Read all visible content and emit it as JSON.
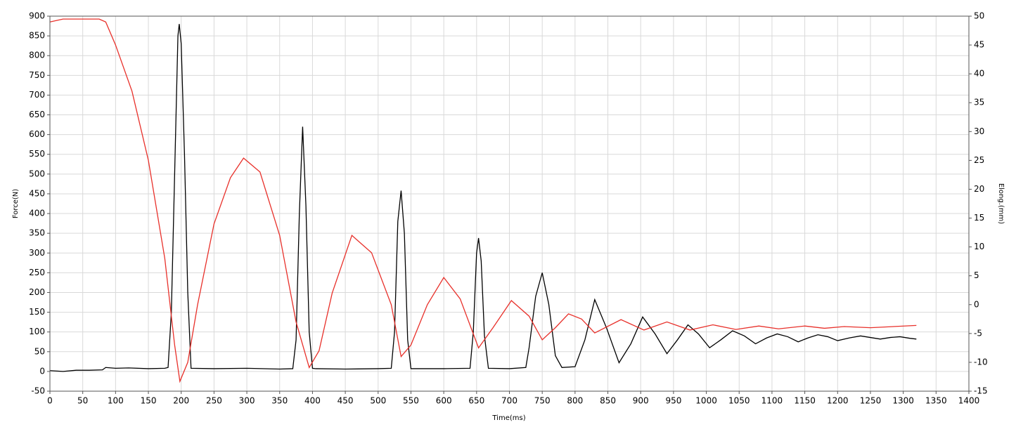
{
  "chart_data": {
    "type": "line",
    "xlabel": "Time(ms)",
    "ylabel": "Force(N)",
    "y2label": "Elong.(mm)",
    "xlim": [
      0,
      1400
    ],
    "xticks": [
      0,
      50,
      100,
      150,
      200,
      250,
      300,
      350,
      400,
      450,
      500,
      550,
      600,
      650,
      700,
      750,
      800,
      850,
      900,
      950,
      1000,
      1050,
      1100,
      1150,
      1200,
      1250,
      1300,
      1350,
      1400
    ],
    "ylim": [
      -50,
      900
    ],
    "yticks": [
      -50,
      0,
      50,
      100,
      150,
      200,
      250,
      300,
      350,
      400,
      450,
      500,
      550,
      600,
      650,
      700,
      750,
      800,
      850,
      900
    ],
    "y2lim": [
      -15,
      50
    ],
    "y2ticks": [
      -15,
      -10,
      -5,
      0,
      5,
      10,
      15,
      20,
      25,
      30,
      35,
      40,
      45,
      50
    ],
    "grid": true,
    "series": [
      {
        "name": "Force",
        "color": "#000000",
        "axis": "y",
        "x": [
          0,
          20,
          40,
          60,
          80,
          85,
          100,
          120,
          150,
          175,
          180,
          185,
          190,
          195,
          197,
          200,
          205,
          210,
          215,
          250,
          300,
          350,
          370,
          375,
          380,
          385,
          390,
          395,
          400,
          405,
          450,
          500,
          520,
          525,
          530,
          535,
          540,
          545,
          550,
          600,
          640,
          645,
          650,
          653,
          657,
          662,
          668,
          700,
          725,
          730,
          740,
          750,
          760,
          770,
          780,
          800,
          815,
          830,
          848,
          867,
          885,
          903,
          922,
          940,
          956,
          972,
          988,
          1005,
          1022,
          1040,
          1058,
          1075,
          1092,
          1108,
          1124,
          1140,
          1155,
          1170,
          1185,
          1200,
          1218,
          1235,
          1250,
          1265,
          1280,
          1295,
          1310,
          1320
        ],
        "values": [
          2,
          0,
          3,
          3,
          4,
          10,
          8,
          9,
          7,
          8,
          10,
          150,
          500,
          850,
          880,
          830,
          550,
          200,
          8,
          7,
          8,
          6,
          7,
          80,
          400,
          620,
          420,
          100,
          8,
          7,
          6,
          7,
          8,
          100,
          380,
          458,
          350,
          80,
          7,
          7,
          8,
          100,
          300,
          338,
          280,
          90,
          8,
          7,
          10,
          60,
          190,
          250,
          170,
          40,
          10,
          12,
          80,
          182,
          110,
          22,
          70,
          138,
          95,
          45,
          80,
          118,
          95,
          60,
          80,
          103,
          90,
          70,
          85,
          95,
          88,
          75,
          85,
          93,
          88,
          78,
          85,
          90,
          86,
          82,
          86,
          88,
          84,
          82
        ]
      },
      {
        "name": "Elong",
        "color": "#e8302a",
        "axis": "y2",
        "x": [
          0,
          20,
          50,
          75,
          85,
          100,
          125,
          150,
          175,
          190,
          198,
          210,
          225,
          250,
          275,
          295,
          320,
          350,
          375,
          395,
          410,
          430,
          460,
          490,
          520,
          535,
          550,
          575,
          600,
          625,
          653,
          675,
          703,
          730,
          750,
          770,
          790,
          810,
          830,
          870,
          905,
          940,
          975,
          1010,
          1045,
          1080,
          1110,
          1150,
          1180,
          1210,
          1250,
          1320
        ],
        "values": [
          49,
          49.5,
          49.5,
          49.5,
          49,
          45,
          37,
          25,
          8,
          -7,
          -13.3,
          -10,
          0,
          14,
          22,
          25.4,
          23,
          12,
          -3,
          -10.9,
          -8,
          2,
          12,
          9,
          0,
          -9,
          -7,
          0,
          4.7,
          1,
          -7.5,
          -4,
          0.7,
          -2,
          -6.1,
          -4,
          -1.6,
          -2.5,
          -4.9,
          -2.6,
          -4.4,
          -3,
          -4.4,
          -3.5,
          -4.3,
          -3.7,
          -4.2,
          -3.7,
          -4.1,
          -3.8,
          -4,
          -3.6
        ]
      }
    ]
  }
}
